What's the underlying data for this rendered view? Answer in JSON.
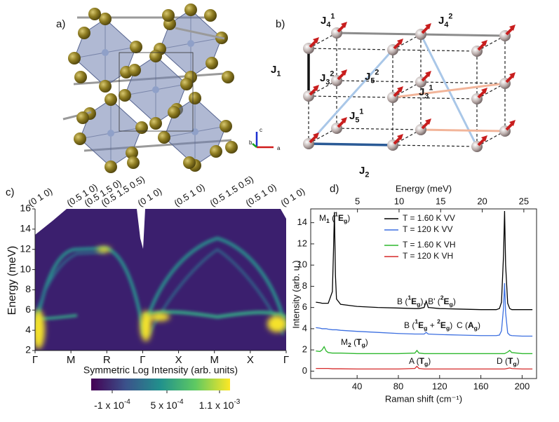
{
  "panel_a": {
    "label": "a)",
    "axes": [
      "c",
      "b",
      "a"
    ]
  },
  "panel_b": {
    "label": "b)",
    "couplings": [
      [
        "J",
        "4",
        "1"
      ],
      [
        "J",
        "4",
        "2"
      ],
      [
        "J",
        "1"
      ],
      [
        "J",
        "3",
        "2"
      ],
      [
        "J",
        "5",
        "2"
      ],
      [
        "J",
        "3",
        "1"
      ],
      [
        "J",
        "5",
        "1"
      ],
      [
        "J",
        "2"
      ]
    ]
  },
  "chart_data": [
    {
      "type": "heatmap",
      "label": "c)",
      "ylabel": "Energy (meV)",
      "ylim": [
        2,
        16
      ],
      "yticks": [
        2,
        4,
        6,
        8,
        10,
        12,
        14,
        16
      ],
      "categories": [
        "Γ",
        "M",
        "R",
        "Γ",
        "X",
        "M",
        "X",
        "Γ"
      ],
      "top_labels": [
        "(0 1 0)",
        "(0.5 1 0)",
        "(0.5 1.5 0)",
        "(0.5 1.5 0.5)",
        "(0 1 0)",
        "(0.5 1 0)",
        "(0.5 1.5 0.5)",
        "(0.5 1 0)",
        "(0 1 0)"
      ],
      "colorbar_label": "Symmetric Log Intensity (arb. units)",
      "colorbar_ticks": [
        {
          "value": -0.0001,
          "label": "-1 x 10",
          "exponent": "-4"
        },
        {
          "value": 0.0005,
          "label": "5 x 10",
          "exponent": "-4"
        },
        {
          "value": 0.0011,
          "label": "1.1 x 10",
          "exponent": "-3"
        }
      ]
    },
    {
      "type": "line",
      "label": "d)",
      "xlabel": "Raman shift (cm⁻¹)",
      "x2label": "Energy (meV)",
      "ylabel": "Intensity (arb. u.)",
      "xlim": [
        -5,
        214
      ],
      "xticks": [
        40,
        80,
        120,
        160,
        200
      ],
      "x2lim": [
        -0.62,
        26.53
      ],
      "x2ticks": [
        5,
        10,
        15,
        20,
        25
      ],
      "ylim": [
        -0.7,
        15.3
      ],
      "yticks": [
        0,
        2,
        4,
        6,
        8,
        10,
        12,
        14
      ],
      "legend": "upper right",
      "x": [
        0,
        4,
        6,
        8,
        10,
        12,
        16,
        17,
        18,
        19,
        20,
        24,
        40,
        60,
        80,
        96,
        98,
        100,
        105,
        107,
        109,
        120,
        140,
        160,
        175,
        178,
        180,
        182,
        183,
        184,
        186,
        188,
        190,
        200,
        210
      ],
      "series": [
        {
          "name": "T = 1.60  K VV",
          "color": "#000000",
          "values": [
            6.5,
            6.45,
            6.4,
            6.4,
            6.4,
            6.4,
            7.5,
            11,
            15,
            9,
            6.8,
            6.3,
            6.1,
            6.0,
            5.95,
            5.9,
            5.9,
            5.9,
            6.0,
            6.6,
            6.0,
            5.9,
            5.85,
            5.8,
            5.8,
            5.9,
            6.5,
            11,
            15.1,
            10,
            6.4,
            5.9,
            5.8,
            5.8,
            5.8
          ]
        },
        {
          "name": "T = 120  K VV",
          "color": "#3c6fe0",
          "values": [
            4.1,
            4.05,
            4.0,
            4.0,
            4.0,
            3.95,
            3.9,
            3.9,
            3.9,
            3.9,
            3.9,
            3.85,
            3.75,
            3.65,
            3.55,
            3.5,
            3.5,
            3.5,
            3.5,
            3.65,
            3.5,
            3.45,
            3.4,
            3.35,
            3.35,
            3.4,
            3.8,
            6,
            8.3,
            5.5,
            3.6,
            3.4,
            3.35,
            3.3,
            3.3
          ]
        },
        {
          "name": "T = 1.60  K VH",
          "color": "#2db82d",
          "values": [
            1.9,
            1.85,
            2.0,
            2.3,
            1.9,
            1.75,
            1.7,
            1.7,
            1.7,
            1.7,
            1.7,
            1.7,
            1.65,
            1.65,
            1.65,
            1.7,
            1.95,
            1.7,
            1.65,
            1.65,
            1.65,
            1.65,
            1.65,
            1.65,
            1.65,
            1.65,
            1.65,
            1.65,
            1.65,
            1.7,
            1.8,
            1.95,
            1.75,
            1.65,
            1.65
          ]
        },
        {
          "name": "T = 120  K VH",
          "color": "#d62a2a",
          "values": [
            0.25,
            0.25,
            0.25,
            0.25,
            0.25,
            0.25,
            0.22,
            0.22,
            0.22,
            0.22,
            0.22,
            0.22,
            0.2,
            0.2,
            0.2,
            0.25,
            0.45,
            0.25,
            0.2,
            0.2,
            0.2,
            0.2,
            0.2,
            0.2,
            0.2,
            0.2,
            0.2,
            0.2,
            0.2,
            0.22,
            0.26,
            0.3,
            0.24,
            0.2,
            0.2
          ]
        }
      ],
      "annotations": [
        [
          "M",
          "1",
          " (",
          "1",
          "E",
          "g",
          ")"
        ],
        [
          "B (",
          "1",
          "E",
          "g",
          "), B' (",
          "2",
          "E",
          "g",
          ")"
        ],
        [
          "B (",
          "1",
          "E",
          "g",
          " + ",
          "2",
          "E",
          "g",
          ")"
        ],
        [
          "C (",
          "A",
          "g",
          ")"
        ],
        [
          "M",
          "2",
          " (",
          "T",
          "g",
          ")"
        ],
        [
          "A (",
          "T",
          "g",
          ")"
        ],
        [
          "D (",
          "T",
          "g",
          ")"
        ]
      ]
    }
  ]
}
